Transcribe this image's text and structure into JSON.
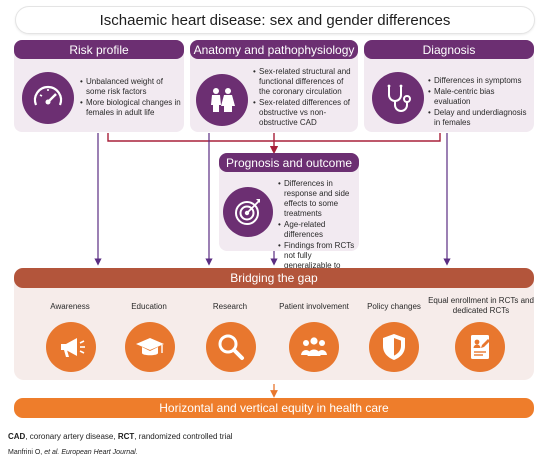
{
  "title": "Ischaemic heart disease: sex and gender differences",
  "risk_profile": {
    "label": "Risk profile",
    "icon": "speedometer-icon",
    "bullets": [
      "Unbalanced weight of some risk factors",
      "More biological changes in females in adult life"
    ]
  },
  "anatomy": {
    "label": "Anatomy and pathophysiology",
    "icon": "male-female-icon",
    "bullets": [
      "Sex-related structural and functional differences of the coronary circulation",
      "Sex-related differences of obstructive vs non-obstructive CAD"
    ]
  },
  "diagnosis": {
    "label": "Diagnosis",
    "icon": "stethoscope-icon",
    "bullets": [
      "Differences in symptoms",
      "Male-centric bias evaluation",
      "Delay and underdiagnosis in females"
    ]
  },
  "prognosis": {
    "label": "Prognosis and outcome",
    "icon": "target-icon",
    "bullets": [
      "Differences in response and side effects to some treatments",
      "Age-related differences",
      "Findings from RCTs not fully generalizable to females"
    ]
  },
  "bridging": {
    "label": "Bridging the gap",
    "items": [
      {
        "label": "Awareness",
        "icon": "megaphone-icon"
      },
      {
        "label": "Education",
        "icon": "graduation-cap-icon"
      },
      {
        "label": "Research",
        "icon": "magnifier-icon"
      },
      {
        "label": "Patient involvement",
        "icon": "people-group-icon"
      },
      {
        "label": "Policy changes",
        "icon": "shield-icon"
      },
      {
        "label": "Equal enrollment in RCTs and dedicated RCTs",
        "icon": "document-icon"
      }
    ]
  },
  "equity": "Horizontal and vertical equity in health care",
  "footnote": {
    "cad_abbr": "CAD",
    "cad_def": ", coronary artery disease, ",
    "rct_abbr": "RCT",
    "rct_def": ", randomized controlled trial",
    "citation_authors": "Manfrini O, ",
    "citation_etal": "et al.",
    "citation_journal": " European Heart Journal."
  },
  "colors": {
    "purple": "#6c2f72",
    "lilac_card": "#f2eaf1",
    "connector_red": "#a8203a",
    "bridge_red": "#b3553b",
    "orange": "#ee7d2b"
  }
}
